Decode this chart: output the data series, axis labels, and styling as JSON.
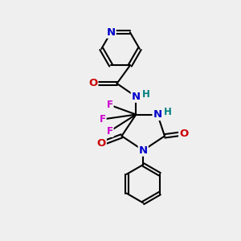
{
  "bg_color": "#efefef",
  "bond_color": "#000000",
  "bond_width": 1.5,
  "atom_colors": {
    "N": "#0000cc",
    "O": "#cc0000",
    "F": "#cc00cc",
    "C": "#000000",
    "H": "#008080"
  },
  "font_size": 8.5
}
